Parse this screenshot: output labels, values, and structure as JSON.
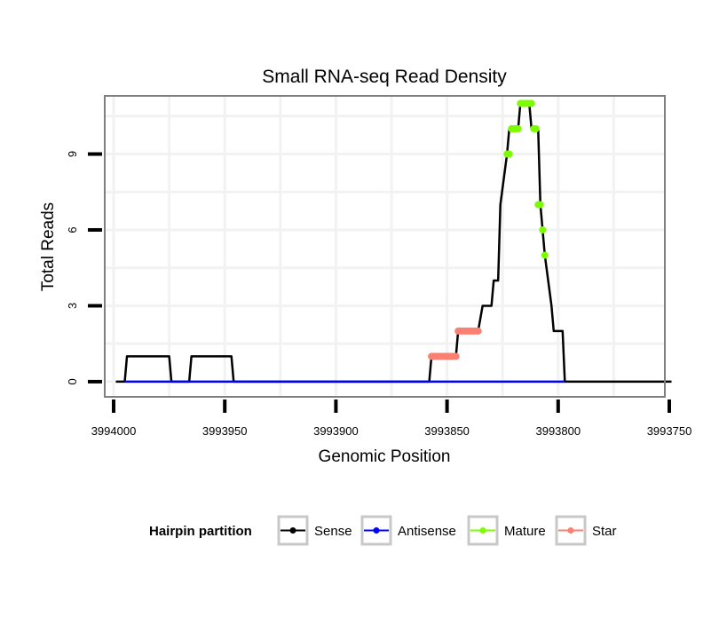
{
  "chart_data": {
    "type": "line",
    "title": "Small RNA-seq Read Density",
    "xlabel": "Genomic Position",
    "ylabel": "Total Reads",
    "x_reversed": true,
    "xlim": [
      3994004,
      3993752
    ],
    "ylim": [
      -0.6,
      11.3
    ],
    "x_ticks": [
      3994000,
      3993950,
      3993900,
      3993850,
      3993800,
      3993750
    ],
    "x_tick_labels": [
      "3994000",
      "3993950",
      "3993900",
      "3993850",
      "3993800",
      "3993750"
    ],
    "y_ticks": [
      0,
      3,
      6,
      9
    ],
    "y_tick_labels": [
      "0",
      "3",
      "6",
      "9"
    ],
    "grid": true,
    "legend": {
      "title": "Hairpin partition",
      "position": "bottom",
      "entries": [
        "Sense",
        "Antisense",
        "Mature",
        "Star"
      ]
    },
    "series": [
      {
        "name": "Sense",
        "color": "#000000",
        "style": "line",
        "x": [
          3993999,
          3993995,
          3993994,
          3993975,
          3993974,
          3993966,
          3993965,
          3993947,
          3993946,
          3993858,
          3993857,
          3993846,
          3993845,
          3993836,
          3993834,
          3993830,
          3993829,
          3993827,
          3993826,
          3993823,
          3993822,
          3993818,
          3993817,
          3993813,
          3993812,
          3993809,
          3993808,
          3993807,
          3993806,
          3993803,
          3993802,
          3993798,
          3993797,
          3993749
        ],
        "y": [
          0,
          0,
          1,
          1,
          0,
          0,
          1,
          1,
          0,
          0,
          1,
          1,
          2,
          2,
          3,
          3,
          4,
          4,
          7,
          9,
          10,
          10,
          11,
          11,
          10,
          10,
          7,
          6,
          5,
          3,
          2,
          2,
          0,
          0
        ]
      },
      {
        "name": "Antisense",
        "color": "#0000ff",
        "style": "line",
        "x": [
          3993995,
          3993797
        ],
        "y": [
          0,
          0
        ]
      },
      {
        "name": "Mature",
        "color": "#7cfc00",
        "style": "points",
        "x": [
          3993823,
          3993822,
          3993821,
          3993820,
          3993819,
          3993818,
          3993817,
          3993816,
          3993815,
          3993814,
          3993813,
          3993812,
          3993811,
          3993810,
          3993809,
          3993808,
          3993807,
          3993806
        ],
        "y": [
          9,
          9,
          10,
          10,
          10,
          10,
          11,
          11,
          11,
          11,
          11,
          11,
          10,
          10,
          7,
          7,
          6,
          5
        ]
      },
      {
        "name": "Star",
        "color": "#fa8072",
        "style": "points",
        "x": [
          3993857,
          3993856,
          3993855,
          3993854,
          3993853,
          3993852,
          3993851,
          3993850,
          3993849,
          3993848,
          3993847,
          3993846,
          3993845,
          3993844,
          3993843,
          3993842,
          3993841,
          3993840,
          3993839,
          3993838,
          3993837,
          3993836
        ],
        "y": [
          1,
          1,
          1,
          1,
          1,
          1,
          1,
          1,
          1,
          1,
          1,
          1,
          2,
          2,
          2,
          2,
          2,
          2,
          2,
          2,
          2,
          2
        ]
      }
    ]
  }
}
